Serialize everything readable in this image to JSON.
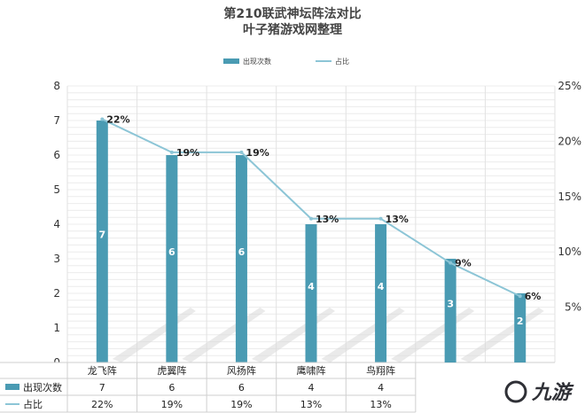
{
  "chart_data": {
    "type": "bar",
    "title": "第210联武神坛阵法对比",
    "subtitle": "叶子猪游戏网整理",
    "categories": [
      "龙飞阵",
      "虎翼阵",
      "风扬阵",
      "鹰啸阵",
      "鸟翔阵",
      "",
      ""
    ],
    "series": [
      {
        "name": "出现次数",
        "type": "bar",
        "axis": "left",
        "values": [
          7,
          6,
          6,
          4,
          4,
          3,
          2
        ],
        "labels": [
          "7",
          "6",
          "6",
          "4",
          "4",
          "3",
          "2"
        ],
        "color": "#4a9bb3"
      },
      {
        "name": "占比",
        "type": "line",
        "axis": "right",
        "values": [
          22,
          19,
          19,
          13,
          13,
          9,
          6
        ],
        "labels": [
          "22%",
          "19%",
          "19%",
          "13%",
          "13%",
          "9%",
          "6%"
        ],
        "color": "#8cc5d6"
      }
    ],
    "y_left": {
      "min": 0,
      "max": 8,
      "ticks": [
        "0",
        "1",
        "2",
        "3",
        "4",
        "5",
        "6",
        "7",
        "8"
      ]
    },
    "y_right": {
      "min": 0,
      "max": 25,
      "ticks": [
        "5%",
        "10%",
        "15%",
        "20%",
        "25%"
      ],
      "tick_values": [
        5,
        10,
        15,
        20,
        25
      ]
    },
    "grid": true,
    "legend_position": "top",
    "data_table": {
      "rows": [
        {
          "label": "出现次数",
          "cells": [
            "7",
            "6",
            "6",
            "4",
            "4"
          ]
        },
        {
          "label": "占比",
          "cells": [
            "22%",
            "19%",
            "19%",
            "13%",
            "13%"
          ]
        }
      ]
    }
  },
  "watermark": "九游"
}
